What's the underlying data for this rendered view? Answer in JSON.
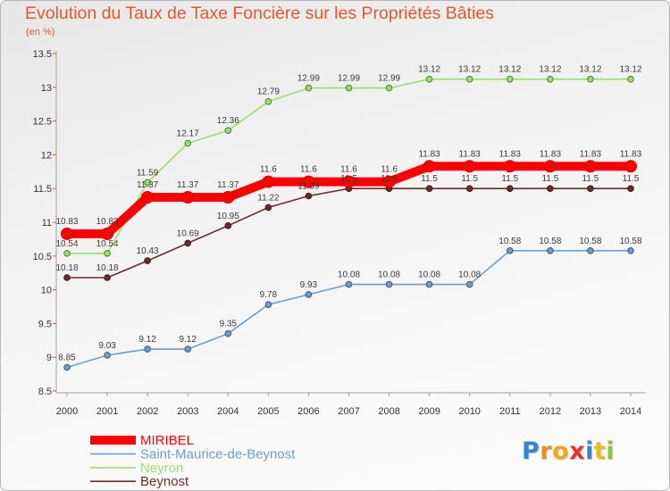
{
  "chart_data": {
    "type": "line",
    "title": "Evolution du Taux de Taxe Foncière sur les Propriétés Bâties",
    "subtitle": "(en %)",
    "categories": [
      "2000",
      "2001",
      "2002",
      "2003",
      "2004",
      "2005",
      "2006",
      "2007",
      "2008",
      "2009",
      "2010",
      "2011",
      "2012",
      "2013",
      "2014"
    ],
    "ylim": [
      8.5,
      13.5
    ],
    "yticks": [
      8.5,
      9,
      9.5,
      10,
      10.5,
      11,
      11.5,
      12,
      12.5,
      13,
      13.5
    ],
    "grid": false,
    "legend": "bottom-left",
    "data_labels": true,
    "series": [
      {
        "name": "MIRIBEL",
        "color": "#ff0000",
        "highlighted": true,
        "values": [
          10.83,
          10.83,
          11.37,
          11.37,
          11.37,
          11.6,
          11.6,
          11.6,
          11.6,
          11.83,
          11.83,
          11.83,
          11.83,
          11.83,
          11.83
        ]
      },
      {
        "name": "Saint-Maurice-de-Beynost",
        "color": "#6a9fd4",
        "values": [
          8.85,
          9.03,
          9.12,
          9.12,
          9.35,
          9.78,
          9.93,
          10.08,
          10.08,
          10.08,
          10.08,
          10.58,
          10.58,
          10.58,
          10.58
        ]
      },
      {
        "name": "Neyron",
        "color": "#99e066",
        "values": [
          10.54,
          10.54,
          11.59,
          12.17,
          12.36,
          12.79,
          12.99,
          12.99,
          12.99,
          13.12,
          13.12,
          13.12,
          13.12,
          13.12,
          13.12
        ]
      },
      {
        "name": "Beynost",
        "color": "#6e2b2b",
        "values": [
          10.18,
          10.18,
          10.43,
          10.69,
          10.95,
          11.22,
          11.39,
          11.5,
          11.5,
          11.5,
          11.5,
          11.5,
          11.5,
          11.5,
          11.5
        ]
      }
    ]
  },
  "logo": {
    "text": "Proxiti",
    "letter_colors": [
      "#2f8ad6",
      "#f28b1f",
      "#f4a623",
      "#e8322b",
      "#2f8ad6",
      "#f4b41e",
      "#8cc63f"
    ]
  }
}
